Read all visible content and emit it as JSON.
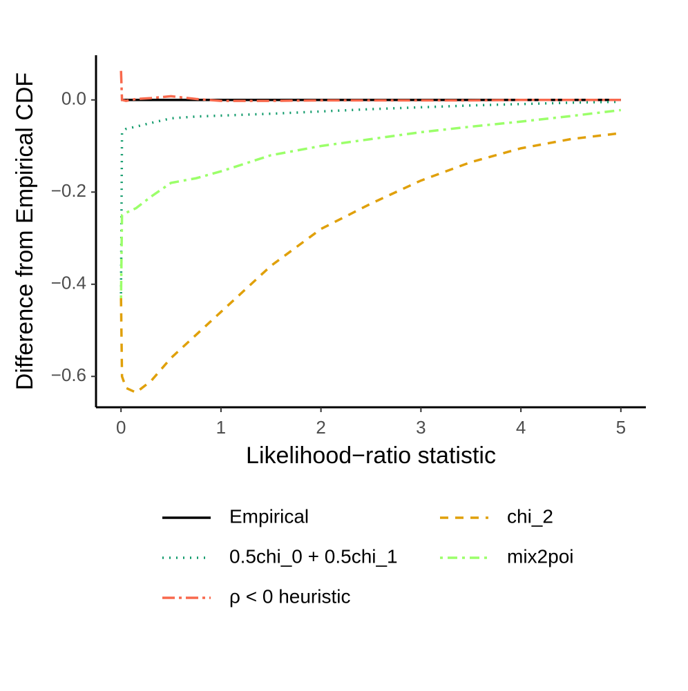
{
  "chart_data": {
    "type": "line",
    "x_label": "Likelihood−ratio statistic",
    "y_label": "Difference from Empirical CDF",
    "x": [
      0,
      0.01,
      0.05,
      0.15,
      0.3,
      0.5,
      0.75,
      1,
      1.5,
      2,
      2.5,
      3,
      3.5,
      4,
      4.5,
      5
    ],
    "xlim": [
      -0.25,
      5.25
    ],
    "xticks": [
      0,
      1,
      2,
      3,
      4,
      5
    ],
    "ylim": [
      -0.667,
      0.097
    ],
    "yticks": [
      {
        "value": -0.6,
        "label": "−0.6"
      },
      {
        "value": -0.4,
        "label": "−0.4"
      },
      {
        "value": -0.2,
        "label": "−0.2"
      },
      {
        "value": 0,
        "label": "0.0"
      }
    ],
    "series": [
      {
        "name": "Empirical",
        "color": "#000000",
        "linetype": "solid",
        "values": [
          0,
          0,
          0,
          0,
          0,
          0,
          0,
          0,
          0,
          0,
          0,
          0,
          0,
          0,
          0,
          0
        ]
      },
      {
        "name": "0.5chi_0 + 0.5chi_1",
        "color": "#0f9a6a",
        "linetype": "dotted",
        "values": [
          -0.42,
          -0.07,
          -0.063,
          -0.058,
          -0.05,
          -0.04,
          -0.036,
          -0.034,
          -0.03,
          -0.025,
          -0.02,
          -0.016,
          -0.012,
          -0.009,
          -0.006,
          -0.004
        ]
      },
      {
        "name": "ρ < 0 heuristic",
        "color": "#f8694d",
        "linetype": "longdash",
        "values": [
          0.063,
          0,
          -0.002,
          0.002,
          0.004,
          0.008,
          0.002,
          -0.002,
          -0.002,
          -0.001,
          -0.001,
          -0.001,
          -0.001,
          0,
          0,
          0
        ]
      },
      {
        "name": "chi_2",
        "color": "#e0a00a",
        "linetype": "dashed",
        "values": [
          -0.43,
          -0.6,
          -0.625,
          -0.635,
          -0.61,
          -0.56,
          -0.51,
          -0.46,
          -0.36,
          -0.28,
          -0.225,
          -0.175,
          -0.135,
          -0.105,
          -0.085,
          -0.072
        ]
      },
      {
        "name": "mix2poi",
        "color": "#9bff6a",
        "linetype": "dotdash",
        "values": [
          -0.43,
          -0.25,
          -0.245,
          -0.235,
          -0.21,
          -0.18,
          -0.17,
          -0.155,
          -0.12,
          -0.1,
          -0.085,
          -0.07,
          -0.058,
          -0.047,
          -0.035,
          -0.022
        ]
      }
    ],
    "legend": "bottom"
  }
}
